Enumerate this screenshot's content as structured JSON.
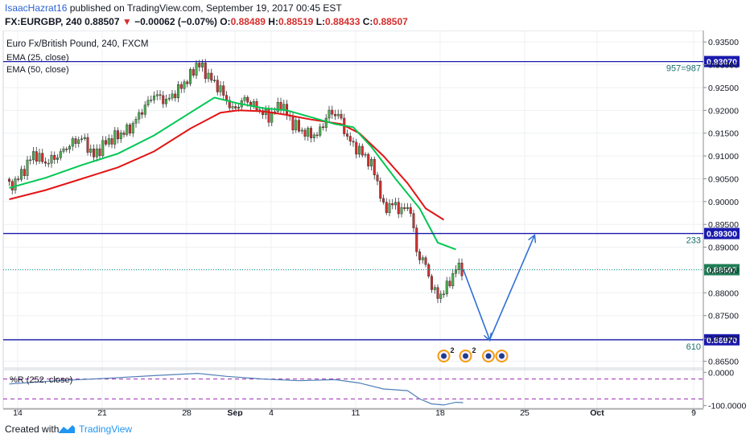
{
  "header": {
    "author": "IsaacHazrat16",
    "published": "published on TradingView.com, September 19, 2017 00:45 EST",
    "symbol": "FX:EURGBP, 240",
    "last": "0.88507",
    "change": "−0.00062 (−0.07%)",
    "o_label": "O:",
    "o_value": "0.88489",
    "h_label": "H:",
    "h_value": "0.88519",
    "l_label": "L:",
    "l_value": "0.88433",
    "c_label": "C:",
    "c_value": "0.88507"
  },
  "footer": {
    "created_with": "Created with",
    "brand": "TradingView"
  },
  "colors": {
    "up": "#4caf50",
    "down": "#d32f2f",
    "ema25": "#00c853",
    "ema50": "#e31414",
    "level": "#1a1aad",
    "arrow": "#2f6fd4",
    "wr": "#4f7fb8",
    "price_line": "#009688"
  },
  "chart_data": {
    "type": "candlestick",
    "title": "Euro Fx/British Pound, 240, FXCM",
    "legend": [
      "EMA (25, close)",
      "EMA (50, close)"
    ],
    "y_ticks": [
      "0.93500",
      "0.93000",
      "0.92500",
      "0.92000",
      "0.91500",
      "0.91000",
      "0.90500",
      "0.90000",
      "0.89500",
      "0.89000",
      "0.88500",
      "0.88000",
      "0.87500",
      "0.87000",
      "0.86500"
    ],
    "y_tick_values": [
      0.935,
      0.93,
      0.925,
      0.92,
      0.915,
      0.91,
      0.905,
      0.9,
      0.895,
      0.89,
      0.885,
      0.88,
      0.875,
      0.87,
      0.865
    ],
    "ylim": [
      0.8635,
      0.9375
    ],
    "x_ticks": [
      {
        "label": "14",
        "t": 0.7
      },
      {
        "label": "21",
        "t": 7.7
      },
      {
        "label": "28",
        "t": 14.7
      },
      {
        "label": "Sep",
        "t": 18.7
      },
      {
        "label": "4",
        "t": 21.7
      },
      {
        "label": "11",
        "t": 28.7
      },
      {
        "label": "18",
        "t": 35.7
      },
      {
        "label": "25",
        "t": 42.7
      },
      {
        "label": "Oct",
        "t": 48.7
      },
      {
        "label": "9",
        "t": 56.7
      }
    ],
    "xlim": [
      -0.5,
      57.5
    ],
    "closes": [
      {
        "t": 0.0,
        "v": 0.903
      },
      {
        "t": 1.0,
        "v": 0.906
      },
      {
        "t": 2.0,
        "v": 0.9105
      },
      {
        "t": 3.0,
        "v": 0.9085
      },
      {
        "t": 4.0,
        "v": 0.91
      },
      {
        "t": 5.0,
        "v": 0.9125
      },
      {
        "t": 6.0,
        "v": 0.914
      },
      {
        "t": 7.0,
        "v": 0.91
      },
      {
        "t": 8.0,
        "v": 0.913
      },
      {
        "t": 9.0,
        "v": 0.9145
      },
      {
        "t": 10.0,
        "v": 0.916
      },
      {
        "t": 11.0,
        "v": 0.92
      },
      {
        "t": 12.0,
        "v": 0.9235
      },
      {
        "t": 13.0,
        "v": 0.922
      },
      {
        "t": 14.0,
        "v": 0.9245
      },
      {
        "t": 15.0,
        "v": 0.9275
      },
      {
        "t": 15.6,
        "v": 0.9305
      },
      {
        "t": 16.5,
        "v": 0.9275
      },
      {
        "t": 17.5,
        "v": 0.9245
      },
      {
        "t": 18.5,
        "v": 0.92
      },
      {
        "t": 19.5,
        "v": 0.9225
      },
      {
        "t": 20.5,
        "v": 0.9205
      },
      {
        "t": 21.5,
        "v": 0.9185
      },
      {
        "t": 22.5,
        "v": 0.9215
      },
      {
        "t": 23.5,
        "v": 0.917
      },
      {
        "t": 24.5,
        "v": 0.915
      },
      {
        "t": 25.5,
        "v": 0.9145
      },
      {
        "t": 26.5,
        "v": 0.9195
      },
      {
        "t": 27.3,
        "v": 0.919
      },
      {
        "t": 28.0,
        "v": 0.914
      },
      {
        "t": 28.8,
        "v": 0.9115
      },
      {
        "t": 29.5,
        "v": 0.91
      },
      {
        "t": 30.3,
        "v": 0.9065
      },
      {
        "t": 31.0,
        "v": 0.8985
      },
      {
        "t": 31.8,
        "v": 0.8995
      },
      {
        "t": 32.5,
        "v": 0.898
      },
      {
        "t": 33.2,
        "v": 0.899
      },
      {
        "t": 33.8,
        "v": 0.888
      },
      {
        "t": 34.3,
        "v": 0.8875
      },
      {
        "t": 35.0,
        "v": 0.8815
      },
      {
        "t": 35.5,
        "v": 0.879
      },
      {
        "t": 36.2,
        "v": 0.881
      },
      {
        "t": 36.6,
        "v": 0.883
      },
      {
        "t": 37.0,
        "v": 0.8855
      },
      {
        "t": 37.6,
        "v": 0.8851
      }
    ],
    "ema25": [
      {
        "t": 0.0,
        "v": 0.903
      },
      {
        "t": 3.0,
        "v": 0.9052
      },
      {
        "t": 6.0,
        "v": 0.908
      },
      {
        "t": 9.0,
        "v": 0.9105
      },
      {
        "t": 12.0,
        "v": 0.9145
      },
      {
        "t": 15.0,
        "v": 0.9195
      },
      {
        "t": 17.0,
        "v": 0.9228
      },
      {
        "t": 19.0,
        "v": 0.9215
      },
      {
        "t": 21.0,
        "v": 0.9205
      },
      {
        "t": 23.0,
        "v": 0.92
      },
      {
        "t": 25.0,
        "v": 0.9185
      },
      {
        "t": 27.0,
        "v": 0.917
      },
      {
        "t": 28.5,
        "v": 0.9163
      },
      {
        "t": 30.0,
        "v": 0.912
      },
      {
        "t": 32.0,
        "v": 0.905
      },
      {
        "t": 34.0,
        "v": 0.8985
      },
      {
        "t": 35.5,
        "v": 0.891
      },
      {
        "t": 37.0,
        "v": 0.8895
      }
    ],
    "ema50": [
      {
        "t": 0.0,
        "v": 0.9005
      },
      {
        "t": 3.0,
        "v": 0.9025
      },
      {
        "t": 6.0,
        "v": 0.905
      },
      {
        "t": 9.0,
        "v": 0.9075
      },
      {
        "t": 12.0,
        "v": 0.911
      },
      {
        "t": 15.0,
        "v": 0.916
      },
      {
        "t": 17.5,
        "v": 0.9195
      },
      {
        "t": 19.0,
        "v": 0.92
      },
      {
        "t": 21.0,
        "v": 0.9198
      },
      {
        "t": 23.0,
        "v": 0.919
      },
      {
        "t": 25.0,
        "v": 0.918
      },
      {
        "t": 27.5,
        "v": 0.917
      },
      {
        "t": 29.0,
        "v": 0.915
      },
      {
        "t": 31.0,
        "v": 0.91
      },
      {
        "t": 33.0,
        "v": 0.904
      },
      {
        "t": 34.5,
        "v": 0.8985
      },
      {
        "t": 36.0,
        "v": 0.896
      }
    ],
    "levels": [
      {
        "price": 0.9307,
        "tag": "0.93070",
        "label": "957=987",
        "t_start": -0.5
      },
      {
        "price": 0.893,
        "tag": "0.89300",
        "label": "233",
        "t_start": -0.5
      },
      {
        "price": 0.8697,
        "tag": "0.86970",
        "label": "610",
        "t_start": -0.5
      }
    ],
    "last_price": {
      "price": 0.88507,
      "tag": "0.88507"
    },
    "projection": [
      {
        "t": 37.6,
        "v": 0.8852
      },
      {
        "t": 39.8,
        "v": 0.8697
      },
      {
        "t": 43.5,
        "v": 0.8925
      }
    ],
    "events": [
      {
        "t": 36.0,
        "badge": "2"
      },
      {
        "t": 37.8,
        "badge": "2"
      },
      {
        "t": 39.7,
        "badge": ""
      },
      {
        "t": 40.8,
        "badge": ""
      }
    ],
    "indicator": {
      "label": "%R (252, close)",
      "ticks": [
        "0.0000",
        "-100.0000"
      ],
      "tick_values": [
        0,
        -100
      ],
      "ylim": [
        -108,
        8
      ],
      "dashed_levels": [
        -20,
        -80
      ],
      "values": [
        {
          "t": 0.0,
          "v": -35
        },
        {
          "t": 4.0,
          "v": -25
        },
        {
          "t": 8.0,
          "v": -18
        },
        {
          "t": 12.0,
          "v": -10
        },
        {
          "t": 15.6,
          "v": -3
        },
        {
          "t": 18.0,
          "v": -12
        },
        {
          "t": 21.0,
          "v": -20
        },
        {
          "t": 24.0,
          "v": -25
        },
        {
          "t": 27.0,
          "v": -22
        },
        {
          "t": 29.0,
          "v": -32
        },
        {
          "t": 31.0,
          "v": -50
        },
        {
          "t": 33.0,
          "v": -55
        },
        {
          "t": 34.0,
          "v": -80
        },
        {
          "t": 35.0,
          "v": -95
        },
        {
          "t": 36.0,
          "v": -98
        },
        {
          "t": 37.0,
          "v": -90
        },
        {
          "t": 37.6,
          "v": -91
        }
      ]
    }
  }
}
